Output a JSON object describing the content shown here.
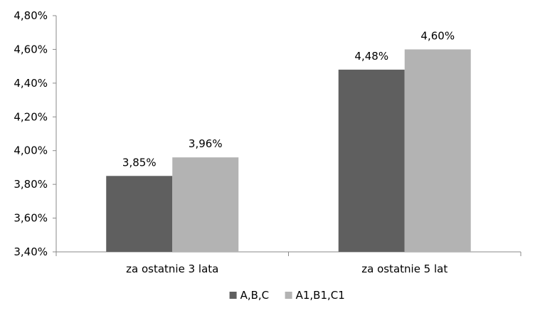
{
  "chart_data": {
    "type": "bar",
    "title": "",
    "xlabel": "",
    "ylabel": "",
    "categories": [
      "za ostatnie 3 lata",
      "za ostatnie 5 lat"
    ],
    "series": [
      {
        "name": "A,B,C",
        "values": [
          3.85,
          4.48
        ],
        "labels": [
          "3,85%",
          "4,48%"
        ],
        "color": "#5f5f5f"
      },
      {
        "name": "A1,B1,C1",
        "values": [
          3.96,
          4.6
        ],
        "labels": [
          "3,96%",
          "4,60%"
        ],
        "color": "#b3b3b3"
      }
    ],
    "ylim": [
      3.4,
      4.8
    ],
    "yticks": [
      3.4,
      3.6,
      3.8,
      4.0,
      4.2,
      4.4,
      4.6,
      4.8
    ],
    "ytick_labels": [
      "3,40%",
      "3,60%",
      "3,80%",
      "4,00%",
      "4,20%",
      "4,40%",
      "4,60%",
      "4,80%"
    ],
    "grid": false,
    "legend_position": "bottom"
  }
}
